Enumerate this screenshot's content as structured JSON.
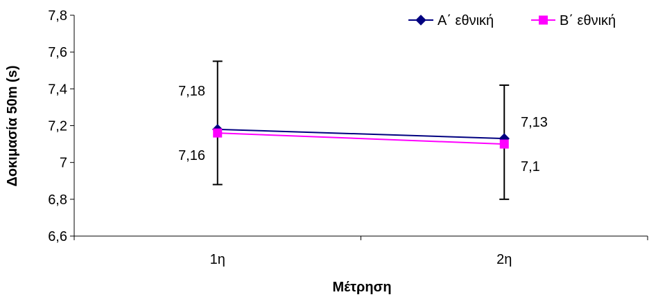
{
  "chart_data": {
    "type": "line",
    "title": "",
    "xlabel": "Μέτρηση",
    "ylabel": "Δοκιμασία 50m (s)",
    "categories": [
      "1η",
      "2η"
    ],
    "ylim": [
      6.6,
      7.8
    ],
    "yticks": [
      6.6,
      6.8,
      7.0,
      7.2,
      7.4,
      7.6,
      7.8
    ],
    "ytick_labels": [
      "6,6",
      "6,8",
      "7",
      "7,2",
      "7,4",
      "7,6",
      "7,8"
    ],
    "grid": false,
    "legend_position": "top-right",
    "series": [
      {
        "name": "Α΄ εθνική",
        "values": [
          7.18,
          7.13
        ],
        "value_labels": [
          "7,18",
          "7,13"
        ],
        "color": "#000080",
        "marker": "diamond",
        "error_low": [
          6.88,
          6.8
        ],
        "error_high": [
          7.55,
          7.42
        ]
      },
      {
        "name": "Β΄ εθνική",
        "values": [
          7.16,
          7.1
        ],
        "value_labels": [
          "7,16",
          "7,1"
        ],
        "color": "#FF00FF",
        "marker": "square"
      }
    ]
  }
}
